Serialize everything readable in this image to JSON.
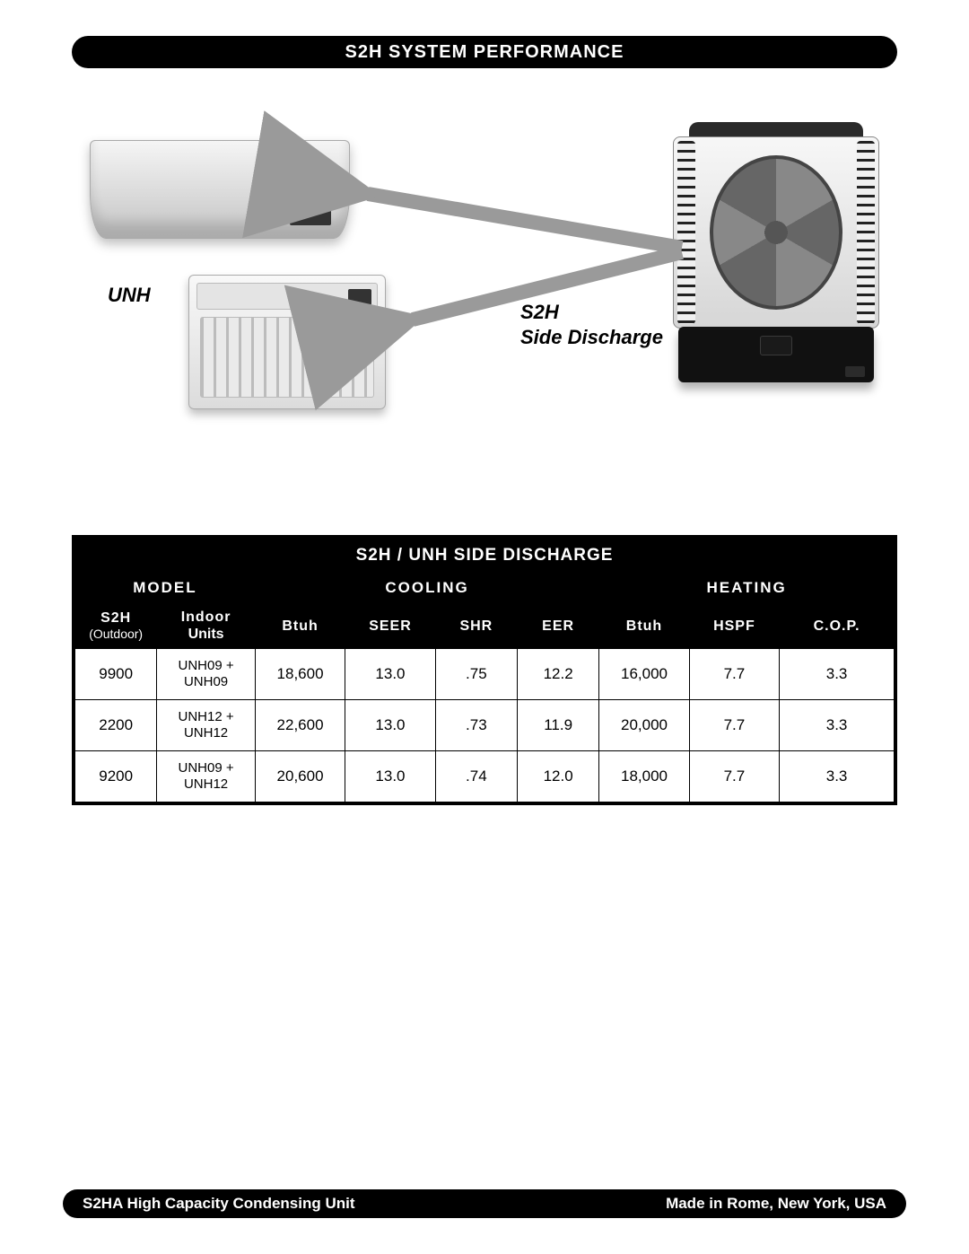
{
  "header": {
    "title": "S2H SYSTEM PERFORMANCE"
  },
  "diagram": {
    "label_left": "UNH",
    "label_right_line1": "S2H",
    "label_right_line2": "Side Discharge",
    "arrow_color": "#9a9a9a"
  },
  "table": {
    "title": "S2H / UNH SIDE DISCHARGE",
    "sections": {
      "model": "MODEL",
      "cooling": "COOLING",
      "heating": "HEATING"
    },
    "columns": {
      "s2h": "S2H",
      "s2h_sub": "(Outdoor)",
      "indoor": "Indoor",
      "indoor_sub": "Units",
      "btuh1": "Btuh",
      "seer": "SEER",
      "shr": "SHR",
      "eer": "EER",
      "btuh2": "Btuh",
      "hspf": "HSPF",
      "cop": "C.O.P."
    },
    "rows": [
      {
        "s2h": "9900",
        "indoor": "UNH09 + UNH09",
        "btuh_c": "18,600",
        "seer": "13.0",
        "shr": ".75",
        "eer": "12.2",
        "btuh_h": "16,000",
        "hspf": "7.7",
        "cop": "3.3"
      },
      {
        "s2h": "2200",
        "indoor": "UNH12 + UNH12",
        "btuh_c": "22,600",
        "seer": "13.0",
        "shr": ".73",
        "eer": "11.9",
        "btuh_h": "20,000",
        "hspf": "7.7",
        "cop": "3.3"
      },
      {
        "s2h": "9200",
        "indoor": "UNH09 + UNH12",
        "btuh_c": "20,600",
        "seer": "13.0",
        "shr": ".74",
        "eer": "12.0",
        "btuh_h": "18,000",
        "hspf": "7.7",
        "cop": "3.3"
      }
    ],
    "col_widths_pct": [
      10,
      12,
      11,
      11,
      10,
      10,
      11,
      11,
      14
    ]
  },
  "footer": {
    "left": "S2HA High Capacity Condensing Unit",
    "right": "Made in Rome, New York, USA"
  },
  "colors": {
    "black": "#000000",
    "white": "#ffffff"
  }
}
